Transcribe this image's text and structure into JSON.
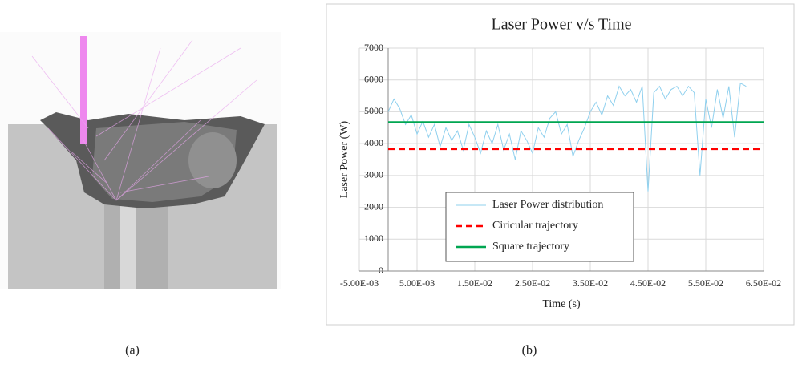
{
  "captions": {
    "a": "(a)",
    "b": "(b)"
  },
  "chart_data": {
    "type": "line",
    "title": "Laser Power v/s Time",
    "x_label": "Time (s)",
    "y_label": "Laser Power (W)",
    "xlim": [
      -0.005,
      0.065
    ],
    "ylim": [
      0,
      7000
    ],
    "xticks": [
      {
        "value": -0.005,
        "label": "-5.00E-03"
      },
      {
        "value": 0.005,
        "label": "5.00E-03"
      },
      {
        "value": 0.015,
        "label": "1.50E-02"
      },
      {
        "value": 0.025,
        "label": "2.50E-02"
      },
      {
        "value": 0.035,
        "label": "3.50E-02"
      },
      {
        "value": 0.045,
        "label": "4.50E-02"
      },
      {
        "value": 0.055,
        "label": "5.50E-02"
      },
      {
        "value": 0.065,
        "label": "6.50E-02"
      }
    ],
    "yticks": [
      0,
      1000,
      2000,
      3000,
      4000,
      5000,
      6000,
      7000
    ],
    "grid": true,
    "legend_position": "bottom-center",
    "series": [
      {
        "name": "Laser Power distribution",
        "color": "#8fd0ee",
        "dashed": false,
        "width": 1,
        "x": [
          0,
          0.001,
          0.002,
          0.003,
          0.004,
          0.005,
          0.006,
          0.007,
          0.008,
          0.009,
          0.01,
          0.011,
          0.012,
          0.013,
          0.014,
          0.015,
          0.016,
          0.017,
          0.018,
          0.019,
          0.02,
          0.021,
          0.022,
          0.023,
          0.024,
          0.025,
          0.026,
          0.027,
          0.028,
          0.029,
          0.03,
          0.031,
          0.032,
          0.033,
          0.034,
          0.035,
          0.036,
          0.037,
          0.038,
          0.039,
          0.04,
          0.041,
          0.042,
          0.043,
          0.044,
          0.045,
          0.046,
          0.047,
          0.048,
          0.049,
          0.05,
          0.051,
          0.052,
          0.053,
          0.054,
          0.055,
          0.056,
          0.057,
          0.058,
          0.059,
          0.06,
          0.061,
          0.062
        ],
        "values": [
          5000,
          5400,
          5100,
          4600,
          4900,
          4300,
          4700,
          4200,
          4600,
          3900,
          4500,
          4100,
          4400,
          3800,
          4600,
          4200,
          3700,
          4400,
          4000,
          4600,
          3800,
          4300,
          3500,
          4400,
          4100,
          3700,
          4500,
          4200,
          4800,
          5000,
          4300,
          4600,
          3600,
          4100,
          4500,
          5000,
          5300,
          4900,
          5500,
          5200,
          5800,
          5500,
          5700,
          5300,
          5800,
          2500,
          5600,
          5800,
          5400,
          5700,
          5800,
          5500,
          5800,
          5600,
          3000,
          5400,
          4500,
          5700,
          4800,
          5800,
          4200,
          5900,
          5800
        ]
      },
      {
        "name": "Ciricular trajectory",
        "color": "#ff0000",
        "dashed": true,
        "width": 2.5,
        "x": [
          0,
          0.065
        ],
        "values": [
          3830,
          3830
        ]
      },
      {
        "name": "Square trajectory",
        "color": "#00a651",
        "dashed": false,
        "width": 2.5,
        "x": [
          0,
          0.065
        ],
        "values": [
          4670,
          4670
        ]
      }
    ]
  }
}
